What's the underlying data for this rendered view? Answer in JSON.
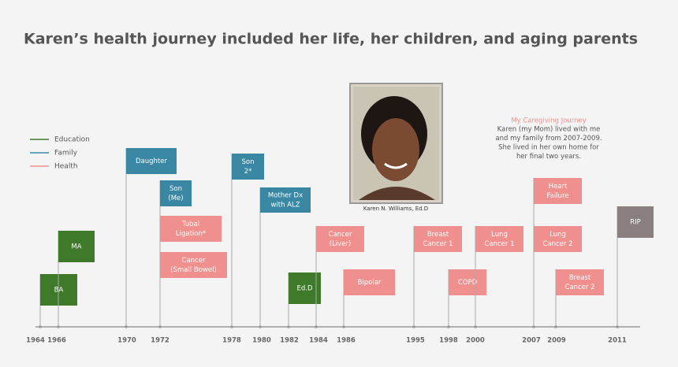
{
  "title": "Karen’s health journey included her life, her children, and aging parents",
  "legend": [
    {
      "name": "Education",
      "color": "#3f7a2a"
    },
    {
      "name": "Family",
      "color": "#3a87a3"
    },
    {
      "name": "Health",
      "color": "#f0908e"
    }
  ],
  "photo_caption": "Karen N. Williams, Ed.D",
  "note": {
    "title": "My Caregiving Journey",
    "lines": [
      "Karen (my Mom) lived with me",
      "and my family from 2007-2009.",
      "She lived in her own home for",
      "her final two years."
    ]
  },
  "years": [
    "1964",
    "1966",
    "1970",
    "1972",
    "1978",
    "1980",
    "1982",
    "1984",
    "1986",
    "1995",
    "1998",
    "2000",
    "2007",
    "2009",
    "2011"
  ],
  "events": [
    {
      "lines": [
        "BA"
      ],
      "color": "#3f7a2a"
    },
    {
      "lines": [
        "MA"
      ],
      "color": "#3f7a2a"
    },
    {
      "lines": [
        "Daughter"
      ],
      "color": "#3a87a3"
    },
    {
      "lines": [
        "Son",
        "(Me)"
      ],
      "color": "#3a87a3"
    },
    {
      "lines": [
        "Tubal",
        "Ligation*"
      ],
      "color": "#f0908e"
    },
    {
      "lines": [
        "Cancer",
        "(Small Bowel)"
      ],
      "color": "#f0908e"
    },
    {
      "lines": [
        "Son",
        "2*"
      ],
      "color": "#3a87a3"
    },
    {
      "lines": [
        "Mother Dx",
        "with ALZ"
      ],
      "color": "#3a87a3"
    },
    {
      "lines": [
        "Ed.D"
      ],
      "color": "#3f7a2a"
    },
    {
      "lines": [
        "Cancer",
        "(Liver)"
      ],
      "color": "#f0908e"
    },
    {
      "lines": [
        "Bipolar"
      ],
      "color": "#f0908e"
    },
    {
      "lines": [
        "Breast",
        "Cancer 1"
      ],
      "color": "#f0908e"
    },
    {
      "lines": [
        "COPD"
      ],
      "color": "#f0908e"
    },
    {
      "lines": [
        "Lung",
        "Cancer 1"
      ],
      "color": "#f0908e"
    },
    {
      "lines": [
        "Heart",
        "Failure"
      ],
      "color": "#f0908e"
    },
    {
      "lines": [
        "Lung",
        "Cancer 2"
      ],
      "color": "#f0908e"
    },
    {
      "lines": [
        "Breast",
        "Cancer 2"
      ],
      "color": "#f0908e"
    },
    {
      "lines": [
        "RIP"
      ],
      "color": "#8a7f7f"
    }
  ]
}
